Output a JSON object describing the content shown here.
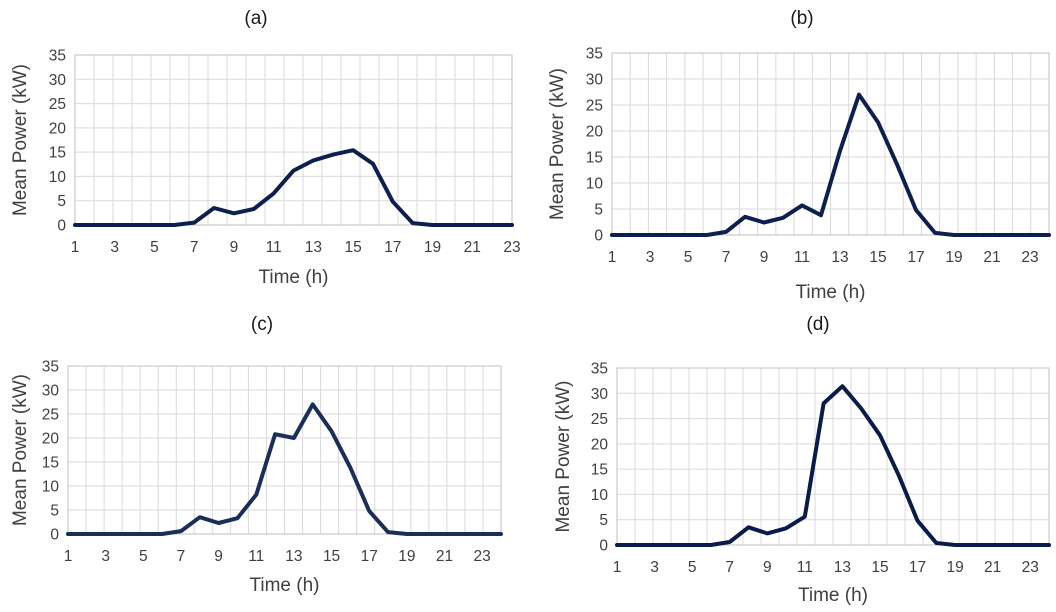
{
  "chart_data": [
    {
      "panel_label": "(a)",
      "type": "line",
      "xlabel": "Time (h)",
      "ylabel": "Mean Power (kW)",
      "ylim": [
        0,
        35
      ],
      "yticks": [
        0,
        5,
        10,
        15,
        20,
        25,
        30,
        35
      ],
      "xlim": [
        1,
        23
      ],
      "xticks": [
        1,
        3,
        5,
        7,
        9,
        11,
        13,
        15,
        17,
        19,
        21,
        23
      ],
      "grid": true,
      "series_color": "#0d1f4f",
      "x": [
        1,
        2,
        3,
        4,
        5,
        6,
        7,
        8,
        9,
        10,
        11,
        12,
        13,
        14,
        15,
        16,
        17,
        18,
        19,
        20,
        21,
        22,
        23
      ],
      "values": [
        0,
        0,
        0,
        0,
        0,
        0,
        0.5,
        3.5,
        2.4,
        3.3,
        6.5,
        11.2,
        13.3,
        14.5,
        15.4,
        12.6,
        4.8,
        0.4,
        0,
        0,
        0,
        0,
        0
      ]
    },
    {
      "panel_label": "(b)",
      "type": "line",
      "xlabel": "Time (h)",
      "ylabel": "Mean Power (kW)",
      "ylim": [
        0,
        35
      ],
      "yticks": [
        0,
        5,
        10,
        15,
        20,
        25,
        30,
        35
      ],
      "xlim": [
        1,
        24
      ],
      "xticks": [
        1,
        3,
        5,
        7,
        9,
        11,
        13,
        15,
        17,
        19,
        21,
        23
      ],
      "grid": true,
      "series_color": "#0d1f4f",
      "x": [
        1,
        2,
        3,
        4,
        5,
        6,
        7,
        8,
        9,
        10,
        11,
        12,
        13,
        14,
        15,
        16,
        17,
        18,
        19,
        20,
        21,
        22,
        23,
        24
      ],
      "values": [
        0,
        0,
        0,
        0,
        0,
        0,
        0.6,
        3.5,
        2.4,
        3.3,
        5.7,
        3.8,
        16.2,
        27.0,
        21.7,
        13.6,
        4.8,
        0.4,
        0,
        0,
        0,
        0,
        0,
        0
      ]
    },
    {
      "panel_label": "(c)",
      "type": "line",
      "xlabel": "Time (h)",
      "ylabel": "Mean Power (kW)",
      "ylim": [
        0,
        35
      ],
      "yticks": [
        0,
        5,
        10,
        15,
        20,
        25,
        30,
        35
      ],
      "xlim": [
        1,
        24
      ],
      "xticks": [
        1,
        3,
        5,
        7,
        9,
        11,
        13,
        15,
        17,
        19,
        21,
        23
      ],
      "grid": true,
      "series_color": "#1b2e59",
      "x": [
        1,
        2,
        3,
        4,
        5,
        6,
        7,
        8,
        9,
        10,
        11,
        12,
        13,
        14,
        15,
        16,
        17,
        18,
        19,
        20,
        21,
        22,
        23,
        24
      ],
      "values": [
        0,
        0,
        0,
        0,
        0,
        0,
        0.6,
        3.5,
        2.3,
        3.3,
        8.2,
        20.8,
        20.0,
        27.0,
        21.4,
        13.8,
        4.8,
        0.4,
        0,
        0,
        0,
        0,
        0,
        0
      ]
    },
    {
      "panel_label": "(d)",
      "type": "line",
      "xlabel": "Time (h)",
      "ylabel": "Mean Power (kW)",
      "ylim": [
        0,
        35
      ],
      "yticks": [
        0,
        5,
        10,
        15,
        20,
        25,
        30,
        35
      ],
      "xlim": [
        1,
        24
      ],
      "xticks": [
        1,
        3,
        5,
        7,
        9,
        11,
        13,
        15,
        17,
        19,
        21,
        23
      ],
      "grid": true,
      "series_color": "#0a1a4a",
      "x": [
        1,
        2,
        3,
        4,
        5,
        6,
        7,
        8,
        9,
        10,
        11,
        12,
        13,
        14,
        15,
        16,
        17,
        18,
        19,
        20,
        21,
        22,
        23,
        24
      ],
      "values": [
        0,
        0,
        0,
        0,
        0,
        0,
        0.6,
        3.5,
        2.3,
        3.3,
        5.6,
        28.0,
        31.4,
        27.0,
        21.7,
        13.8,
        4.8,
        0.4,
        0,
        0,
        0,
        0,
        0,
        0
      ]
    }
  ]
}
